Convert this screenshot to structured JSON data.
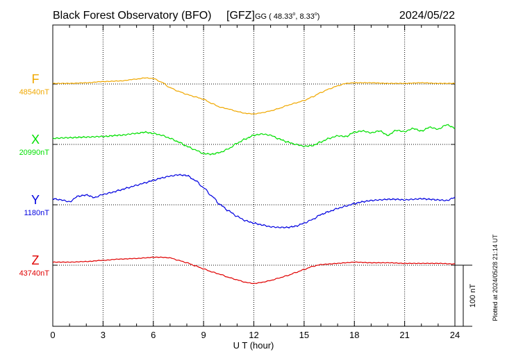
{
  "header": {
    "observatory": "Black Forest Observatory (BFO)",
    "agency": "[GFZ]",
    "coord_prefix": "GG ( 48.33",
    "coord_mid": ",   8.33",
    "coord_suffix": ")",
    "date": "2024/05/22"
  },
  "plotted_note": "Plotted at 2024/05/28 21:14 UT",
  "chart_data": {
    "type": "line",
    "title": "Black Forest Observatory (BFO) [GFZ] GG (48.33°, 8.33°) 2024/05/22",
    "xlabel": "U T (hour)",
    "ylabel": "",
    "xlim": [
      0,
      24
    ],
    "x_ticks": [
      "0",
      "3",
      "6",
      "9",
      "12",
      "15",
      "18",
      "21",
      "24"
    ],
    "grid": true,
    "scale_bar": {
      "value": 100,
      "label": "100 nT"
    },
    "series": [
      {
        "name": "F",
        "baseline_label": "48540nT",
        "baseline_nT": 48540,
        "color": "#f0a800",
        "x": [
          0,
          1,
          2,
          3,
          4,
          5,
          5.5,
          6,
          6.5,
          7,
          7.5,
          8,
          8.5,
          9,
          9.5,
          10,
          10.5,
          11,
          11.5,
          12,
          12.5,
          13,
          13.5,
          14,
          14.5,
          15,
          15.5,
          16,
          16.5,
          17,
          17.5,
          18,
          19,
          20,
          21,
          22,
          23,
          24
        ],
        "values": [
          1,
          1,
          2,
          4,
          5,
          8,
          10,
          9,
          3,
          -6,
          -12,
          -17,
          -21,
          -25,
          -32,
          -38,
          -41,
          -45,
          -48,
          -49,
          -47,
          -44,
          -40,
          -35,
          -31,
          -27,
          -21,
          -14,
          -8,
          -3,
          1,
          2,
          2,
          1,
          1,
          2,
          1,
          1
        ]
      },
      {
        "name": "X",
        "baseline_label": "20990nT",
        "baseline_nT": 20990,
        "color": "#00e000",
        "x": [
          0,
          1,
          2,
          3,
          4,
          5,
          5.5,
          6,
          6.5,
          7,
          7.5,
          8,
          8.5,
          9,
          9.5,
          10,
          10.5,
          11,
          11.5,
          12,
          12.5,
          13,
          13.5,
          14,
          14.5,
          15,
          15.5,
          16,
          16.5,
          17,
          17.5,
          18,
          18.5,
          19,
          19.5,
          20,
          20.5,
          21,
          21.5,
          22,
          22.5,
          23,
          23.5,
          24
        ],
        "values": [
          10,
          11,
          12,
          13,
          15,
          18,
          20,
          18,
          15,
          10,
          4,
          -3,
          -9,
          -15,
          -16,
          -13,
          -7,
          2,
          9,
          15,
          17,
          15,
          9,
          4,
          0,
          -3,
          -2,
          4,
          10,
          14,
          13,
          20,
          22,
          19,
          22,
          15,
          23,
          21,
          26,
          22,
          28,
          25,
          32,
          27
        ]
      },
      {
        "name": "Y",
        "baseline_label": "1180nT",
        "baseline_nT": 1180,
        "color": "#0000e0",
        "x": [
          0,
          0.5,
          1,
          1.5,
          2,
          2.5,
          3,
          3.5,
          4,
          4.5,
          5,
          5.5,
          6,
          6.5,
          7,
          7.5,
          8,
          8.5,
          9,
          9.5,
          10,
          10.5,
          11,
          11.5,
          12,
          12.5,
          13,
          13.5,
          14,
          14.5,
          15,
          15.5,
          16,
          16.5,
          17,
          17.5,
          18,
          18.5,
          19,
          19.5,
          20,
          20.5,
          21,
          21.5,
          22,
          22.5,
          23,
          23.5,
          24
        ],
        "values": [
          10,
          8,
          5,
          14,
          16,
          12,
          17,
          20,
          24,
          28,
          32,
          36,
          40,
          44,
          47,
          49,
          48,
          40,
          28,
          14,
          0,
          -10,
          -19,
          -26,
          -30,
          -33,
          -36,
          -37,
          -37,
          -35,
          -30,
          -24,
          -16,
          -11,
          -6,
          -2,
          2,
          5,
          7,
          8,
          9,
          9,
          8,
          9,
          10,
          9,
          8,
          7,
          12
        ]
      },
      {
        "name": "Z",
        "baseline_label": "43740nT",
        "baseline_nT": 43740,
        "color": "#e00000",
        "x": [
          0,
          1,
          2,
          3,
          4,
          5,
          5.5,
          6,
          6.5,
          7,
          7.5,
          8,
          8.5,
          9,
          9.5,
          10,
          10.5,
          11,
          11.5,
          12,
          12.5,
          13,
          13.5,
          14,
          14.5,
          15,
          15.5,
          16,
          16.5,
          17,
          17.5,
          18,
          19,
          20,
          21,
          22,
          23,
          24
        ],
        "values": [
          5,
          5,
          6,
          8,
          10,
          11,
          12,
          13,
          13,
          12,
          8,
          4,
          -1,
          -6,
          -11,
          -15,
          -20,
          -24,
          -28,
          -30,
          -28,
          -25,
          -21,
          -17,
          -12,
          -7,
          -2,
          1,
          2,
          3,
          4,
          5,
          4,
          4,
          3,
          3,
          3,
          2
        ]
      }
    ]
  }
}
